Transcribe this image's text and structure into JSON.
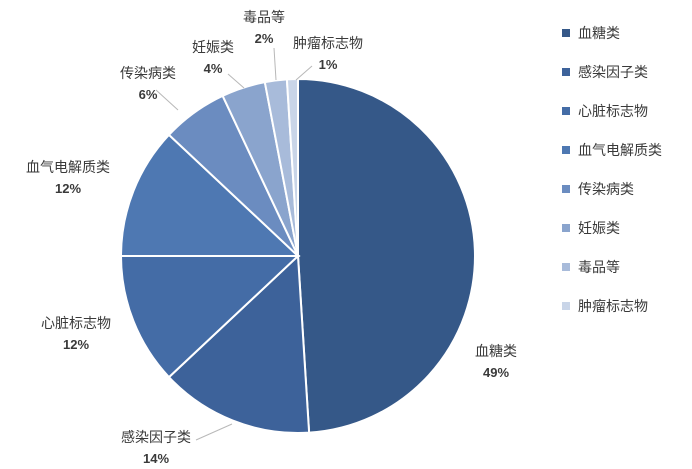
{
  "chart_data": {
    "type": "pie",
    "title": "",
    "slices": [
      {
        "label": "血糖类",
        "value": 49,
        "display": "49%",
        "color": "#355888"
      },
      {
        "label": "感染因子类",
        "value": 14,
        "display": "14%",
        "color": "#3d629a"
      },
      {
        "label": "心脏标志物",
        "value": 12,
        "display": "12%",
        "color": "#446ca6"
      },
      {
        "label": "血气电解质类",
        "value": 12,
        "display": "12%",
        "color": "#4e78b2"
      },
      {
        "label": "传染病类",
        "value": 6,
        "display": "6%",
        "color": "#6b8cc0"
      },
      {
        "label": "妊娠类",
        "value": 4,
        "display": "4%",
        "color": "#8aa4cd"
      },
      {
        "label": "毒品等",
        "value": 2,
        "display": "2%",
        "color": "#a8bbda"
      },
      {
        "label": "肿瘤标志物",
        "value": 1,
        "display": "1%",
        "color": "#c9d5e8"
      }
    ],
    "legend": {
      "position": "right",
      "entries": [
        "血糖类",
        "感染因子类",
        "心脏标志物",
        "血气电解质类",
        "传染病类",
        "妊娠类",
        "毒品等",
        "肿瘤标志物"
      ]
    },
    "start_angle": "12 o'clock",
    "direction": "clockwise"
  }
}
